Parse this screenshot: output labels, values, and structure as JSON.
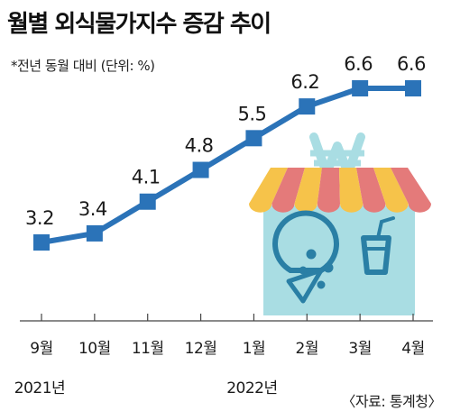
{
  "title": "월별 외식물가지수 증감 추이",
  "subtitle": "*전년 동월 대비 (단위: %)",
  "source": "〈자료: 통계청〉",
  "colors": {
    "line": "#2b73b8",
    "marker": "#2b73b8",
    "awning_red": "#e47a7a",
    "awning_yellow": "#f6c34a",
    "store_body": "#a9dde3",
    "won_sign": "#a9dde3",
    "icon_dark": "#2a7fa5"
  },
  "icons": [
    "won-sign-icon",
    "store-awning-icon",
    "pizza-icon",
    "drink-cup-icon"
  ],
  "chart_data": {
    "type": "line",
    "title": "월별 외식물가지수 증감 추이",
    "subtitle": "*전년 동월 대비 (단위: %)",
    "categories": [
      "9월",
      "10월",
      "11월",
      "12월",
      "1월",
      "2월",
      "3월",
      "4월"
    ],
    "year_labels": [
      {
        "label": "2021년",
        "under": "9월"
      },
      {
        "label": "2022년",
        "under": "1월"
      }
    ],
    "series": [
      {
        "values": [
          3.2,
          3.4,
          4.1,
          4.8,
          5.5,
          6.2,
          6.6,
          6.6
        ]
      }
    ],
    "value_labels": [
      "3.2",
      "3.4",
      "4.1",
      "4.8",
      "5.5",
      "6.2",
      "6.6",
      "6.6"
    ],
    "ylim": [
      3.0,
      6.8
    ],
    "grid": false,
    "legend": "none"
  }
}
